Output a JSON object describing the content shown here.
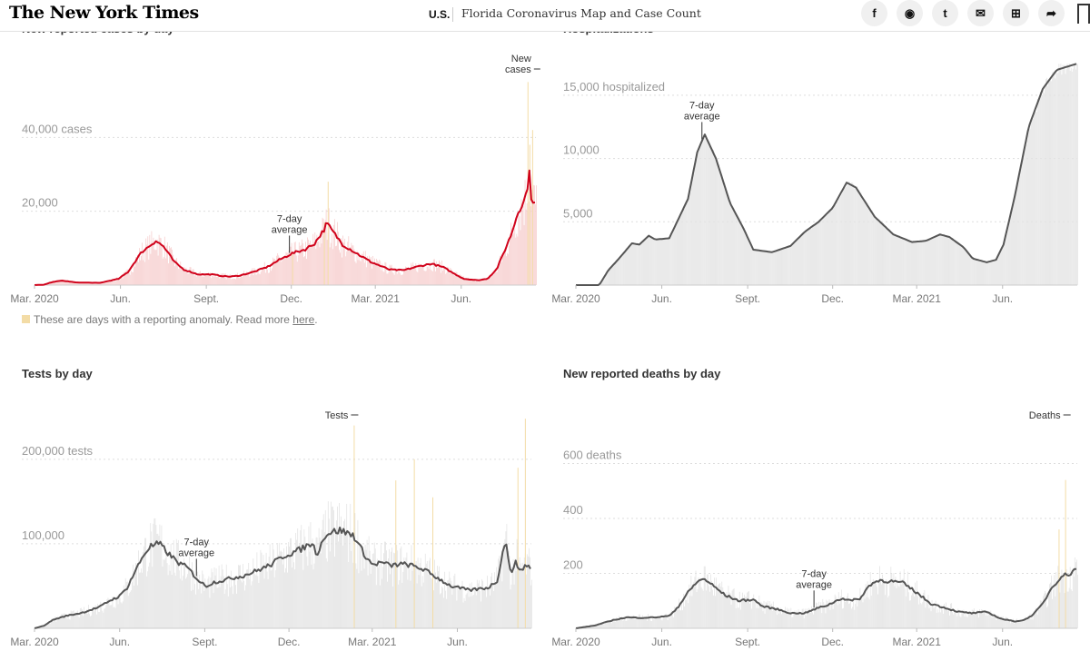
{
  "header": {
    "logo": "The New York Times",
    "section": "U.S.",
    "headline": "Florida Coronavirus Map and Case Count",
    "share_icons": [
      "facebook-icon",
      "whatsapp-icon",
      "twitter-icon",
      "email-icon",
      "gift-icon",
      "share-icon"
    ],
    "share_glyphs": [
      "f",
      "◉",
      "t",
      "✉",
      "⊞",
      "➦"
    ]
  },
  "note": {
    "text": "These are days with a reporting anomaly. Read more ",
    "link": "here",
    "end": "."
  },
  "chart_data": [
    {
      "id": "cases",
      "type": "bar",
      "title": "New reported cases by day",
      "x_domain": [
        0,
        537
      ],
      "x_ticks": [
        {
          "x": 0,
          "label": "Mar. 2020"
        },
        {
          "x": 92,
          "label": "Jun."
        },
        {
          "x": 184,
          "label": "Sept."
        },
        {
          "x": 275,
          "label": "Dec."
        },
        {
          "x": 365,
          "label": "Mar. 2021"
        },
        {
          "x": 457,
          "label": "Jun."
        }
      ],
      "ylim": [
        0,
        60000
      ],
      "y_ticks": [
        {
          "v": 20000,
          "label": "20,000"
        },
        {
          "v": 40000,
          "label": "40,000 cases"
        }
      ],
      "avg_label": "7-day average",
      "avg_label_at": 273,
      "peak_label": "New cases",
      "peak_label_at": 530,
      "avg_anchors": [
        [
          0,
          0
        ],
        [
          10,
          100
        ],
        [
          20,
          900
        ],
        [
          30,
          1200
        ],
        [
          45,
          700
        ],
        [
          70,
          600
        ],
        [
          90,
          1700
        ],
        [
          100,
          3500
        ],
        [
          108,
          6500
        ],
        [
          115,
          9000
        ],
        [
          125,
          11000
        ],
        [
          130,
          12000
        ],
        [
          138,
          10500
        ],
        [
          150,
          6200
        ],
        [
          160,
          4200
        ],
        [
          175,
          2900
        ],
        [
          190,
          2900
        ],
        [
          200,
          2500
        ],
        [
          210,
          2300
        ],
        [
          220,
          2600
        ],
        [
          235,
          3600
        ],
        [
          250,
          5000
        ],
        [
          262,
          6800
        ],
        [
          275,
          8500
        ],
        [
          290,
          9700
        ],
        [
          300,
          11300
        ],
        [
          310,
          15000
        ],
        [
          313,
          16800
        ],
        [
          318,
          15000
        ],
        [
          330,
          11000
        ],
        [
          345,
          8600
        ],
        [
          360,
          6300
        ],
        [
          380,
          4200
        ],
        [
          395,
          4000
        ],
        [
          410,
          5000
        ],
        [
          425,
          5800
        ],
        [
          438,
          4800
        ],
        [
          450,
          3000
        ],
        [
          460,
          1700
        ],
        [
          475,
          1300
        ],
        [
          485,
          1700
        ],
        [
          495,
          4300
        ],
        [
          503,
          9000
        ],
        [
          511,
          14000
        ],
        [
          518,
          20000
        ],
        [
          525,
          23000
        ],
        [
          528,
          27000
        ],
        [
          530,
          30000
        ],
        [
          532,
          24000
        ],
        [
          537,
          21500
        ]
      ],
      "anomaly_spikes": [
        [
          276,
          9000
        ],
        [
          310,
          17000
        ],
        [
          314,
          28000
        ],
        [
          528,
          55000
        ],
        [
          530,
          38000
        ],
        [
          533,
          42000
        ]
      ],
      "area_color": "#f7cfcf",
      "line_color": "#d0021b"
    },
    {
      "id": "hosp",
      "type": "bar",
      "title": "Hospitalizations",
      "x_domain": [
        0,
        537
      ],
      "x_ticks": [
        {
          "x": 0,
          "label": "Mar. 2020"
        },
        {
          "x": 92,
          "label": "Jun."
        },
        {
          "x": 184,
          "label": "Sept."
        },
        {
          "x": 275,
          "label": "Dec."
        },
        {
          "x": 365,
          "label": "Mar. 2021"
        },
        {
          "x": 457,
          "label": "Jun."
        }
      ],
      "ylim": [
        0,
        17500
      ],
      "y_ticks": [
        {
          "v": 5000,
          "label": "5,000"
        },
        {
          "v": 10000,
          "label": "10,000"
        },
        {
          "v": 15000,
          "label": "15,000 hospitalized"
        }
      ],
      "avg_label": "7-day average",
      "avg_label_at": 135,
      "avg_anchors": [
        [
          0,
          0
        ],
        [
          25,
          0
        ],
        [
          35,
          1200
        ],
        [
          45,
          2000
        ],
        [
          60,
          3300
        ],
        [
          68,
          3200
        ],
        [
          78,
          3900
        ],
        [
          85,
          3600
        ],
        [
          100,
          3700
        ],
        [
          120,
          6800
        ],
        [
          130,
          10500
        ],
        [
          138,
          11900
        ],
        [
          150,
          10000
        ],
        [
          165,
          6500
        ],
        [
          180,
          4400
        ],
        [
          190,
          2800
        ],
        [
          210,
          2600
        ],
        [
          230,
          3100
        ],
        [
          245,
          4200
        ],
        [
          260,
          5000
        ],
        [
          275,
          6100
        ],
        [
          290,
          8100
        ],
        [
          300,
          7700
        ],
        [
          320,
          5400
        ],
        [
          340,
          4000
        ],
        [
          360,
          3400
        ],
        [
          375,
          3500
        ],
        [
          390,
          4000
        ],
        [
          400,
          3800
        ],
        [
          415,
          3000
        ],
        [
          425,
          2100
        ],
        [
          440,
          1800
        ],
        [
          450,
          2000
        ],
        [
          458,
          3200
        ],
        [
          470,
          7000
        ],
        [
          485,
          12500
        ],
        [
          500,
          15500
        ],
        [
          515,
          17000
        ],
        [
          537,
          17500
        ]
      ],
      "anomaly_spikes": [],
      "area_color": "#e4e4e4",
      "line_color": "#555555"
    },
    {
      "id": "tests",
      "type": "bar",
      "title": "Tests by day",
      "x_domain": [
        0,
        537
      ],
      "x_ticks": [
        {
          "x": 0,
          "label": "Mar. 2020"
        },
        {
          "x": 92,
          "label": "Jun."
        },
        {
          "x": 184,
          "label": "Sept."
        },
        {
          "x": 275,
          "label": "Dec."
        },
        {
          "x": 365,
          "label": "Mar. 2021"
        },
        {
          "x": 457,
          "label": "Jun."
        }
      ],
      "ylim": [
        0,
        260000
      ],
      "y_ticks": [
        {
          "v": 100000,
          "label": "100,000"
        },
        {
          "v": 200000,
          "label": "200,000 tests"
        }
      ],
      "avg_label": "7-day average",
      "avg_label_at": 175,
      "peak_label": "Tests",
      "peak_label_at": 345,
      "avg_anchors": [
        [
          0,
          0
        ],
        [
          10,
          3000
        ],
        [
          20,
          10000
        ],
        [
          35,
          15000
        ],
        [
          50,
          18000
        ],
        [
          70,
          25000
        ],
        [
          80,
          32000
        ],
        [
          92,
          38000
        ],
        [
          100,
          48000
        ],
        [
          110,
          70000
        ],
        [
          118,
          87000
        ],
        [
          125,
          97000
        ],
        [
          135,
          100000
        ],
        [
          145,
          88000
        ],
        [
          155,
          78000
        ],
        [
          165,
          72000
        ],
        [
          178,
          56000
        ],
        [
          185,
          50000
        ],
        [
          195,
          55000
        ],
        [
          205,
          57000
        ],
        [
          215,
          60000
        ],
        [
          225,
          62000
        ],
        [
          240,
          68000
        ],
        [
          255,
          75000
        ],
        [
          270,
          86000
        ],
        [
          285,
          92000
        ],
        [
          300,
          101000
        ],
        [
          305,
          88000
        ],
        [
          315,
          112000
        ],
        [
          330,
          116000
        ],
        [
          345,
          110000
        ],
        [
          355,
          90000
        ],
        [
          365,
          75000
        ],
        [
          375,
          78000
        ],
        [
          385,
          74000
        ],
        [
          395,
          76000
        ],
        [
          405,
          75000
        ],
        [
          420,
          70000
        ],
        [
          435,
          60000
        ],
        [
          450,
          50000
        ],
        [
          470,
          45000
        ],
        [
          490,
          48000
        ],
        [
          500,
          56000
        ],
        [
          506,
          90000
        ],
        [
          510,
          102000
        ],
        [
          515,
          60000
        ],
        [
          520,
          82000
        ],
        [
          525,
          65000
        ],
        [
          530,
          75000
        ],
        [
          537,
          72000
        ]
      ],
      "anomaly_spikes": [
        [
          345,
          240000
        ],
        [
          390,
          175000
        ],
        [
          410,
          200000
        ],
        [
          430,
          155000
        ],
        [
          522,
          190000
        ],
        [
          530,
          248000
        ]
      ],
      "area_color": "#e4e4e4",
      "line_color": "#555555"
    },
    {
      "id": "deaths",
      "type": "bar",
      "title": "New reported deaths by day",
      "x_domain": [
        0,
        537
      ],
      "x_ticks": [
        {
          "x": 0,
          "label": "Mar. 2020"
        },
        {
          "x": 92,
          "label": "Jun."
        },
        {
          "x": 184,
          "label": "Sept."
        },
        {
          "x": 275,
          "label": "Dec."
        },
        {
          "x": 365,
          "label": "Mar. 2021"
        },
        {
          "x": 457,
          "label": "Jun."
        }
      ],
      "ylim": [
        0,
        800
      ],
      "y_ticks": [
        {
          "v": 200,
          "label": "200"
        },
        {
          "v": 400,
          "label": "400"
        },
        {
          "v": 600,
          "label": "600 deaths"
        }
      ],
      "avg_label": "7-day average",
      "avg_label_at": 255,
      "peak_label": "Deaths",
      "peak_label_at": 525,
      "avg_anchors": [
        [
          0,
          0
        ],
        [
          20,
          10
        ],
        [
          40,
          30
        ],
        [
          55,
          40
        ],
        [
          70,
          38
        ],
        [
          85,
          40
        ],
        [
          100,
          45
        ],
        [
          110,
          80
        ],
        [
          120,
          130
        ],
        [
          130,
          170
        ],
        [
          138,
          180
        ],
        [
          145,
          160
        ],
        [
          160,
          120
        ],
        [
          175,
          100
        ],
        [
          190,
          105
        ],
        [
          200,
          80
        ],
        [
          215,
          70
        ],
        [
          230,
          55
        ],
        [
          245,
          55
        ],
        [
          260,
          75
        ],
        [
          270,
          85
        ],
        [
          285,
          110
        ],
        [
          295,
          100
        ],
        [
          305,
          110
        ],
        [
          315,
          160
        ],
        [
          325,
          175
        ],
        [
          340,
          170
        ],
        [
          350,
          165
        ],
        [
          365,
          130
        ],
        [
          380,
          90
        ],
        [
          395,
          75
        ],
        [
          410,
          60
        ],
        [
          425,
          55
        ],
        [
          440,
          60
        ],
        [
          455,
          35
        ],
        [
          470,
          25
        ],
        [
          480,
          30
        ],
        [
          490,
          50
        ],
        [
          500,
          90
        ],
        [
          510,
          150
        ],
        [
          520,
          190
        ],
        [
          530,
          200
        ],
        [
          537,
          225
        ]
      ],
      "anomaly_spikes": [
        [
          517,
          360
        ],
        [
          524,
          540
        ]
      ],
      "area_color": "#e4e4e4",
      "line_color": "#555555"
    }
  ]
}
